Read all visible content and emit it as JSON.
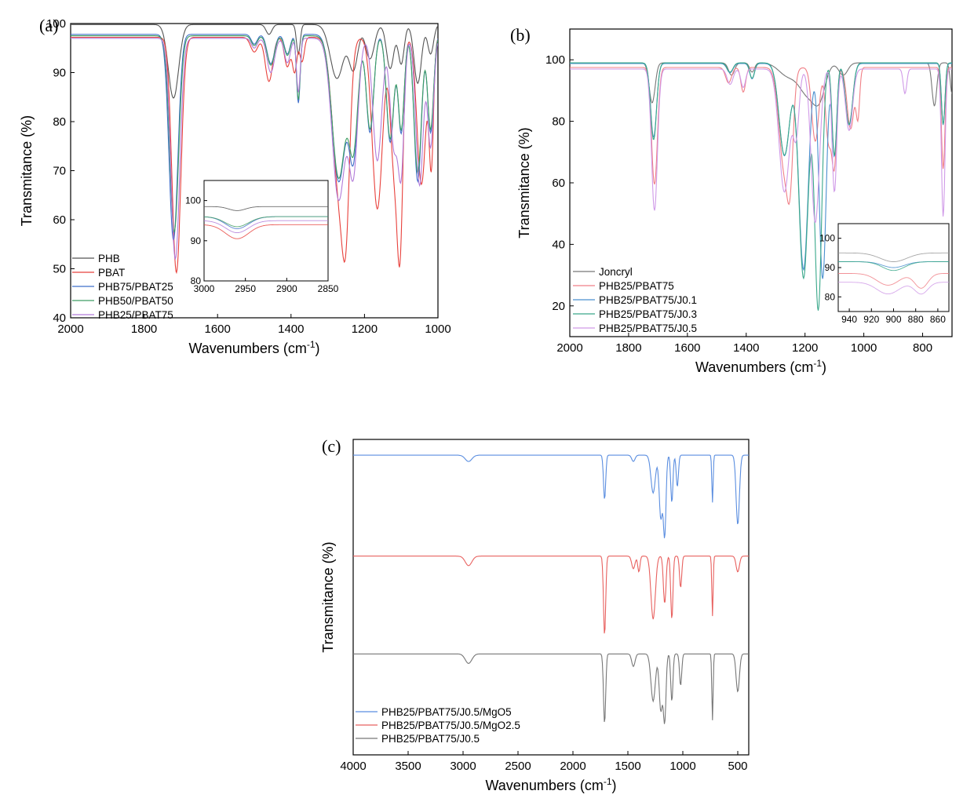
{
  "chart_data": [
    {
      "panel": "(a)",
      "type": "line",
      "xlabel": "Wavenumbers (cm",
      "xlabel_sup": "-1",
      "xlabel_end": ")",
      "ylabel": "Transmitance (%)",
      "xlim": [
        2000,
        1000
      ],
      "ylim": [
        40,
        100
      ],
      "xticks": [
        2000,
        1800,
        1600,
        1400,
        1200,
        1000
      ],
      "yticks": [
        40,
        50,
        60,
        70,
        80,
        90,
        100
      ],
      "legend_position": "bottom-left",
      "series": [
        {
          "name": "PHB",
          "color": "#555555",
          "baseline": 99.8,
          "dips": [
            [
              1720,
              15,
              14
            ],
            [
              1460,
              2,
              8
            ],
            [
              1380,
              6,
              5
            ],
            [
              1275,
              11,
              18
            ],
            [
              1230,
              9,
              12
            ],
            [
              1185,
              7,
              12
            ],
            [
              1130,
              9,
              10
            ],
            [
              1100,
              8,
              8
            ],
            [
              1055,
              12,
              10
            ],
            [
              1020,
              6,
              8
            ]
          ]
        },
        {
          "name": "PBAT",
          "color": "#e8413c",
          "baseline": 97.2,
          "dips": [
            [
              1712,
              48,
              12
            ],
            [
              1500,
              3,
              10
            ],
            [
              1460,
              9,
              10
            ],
            [
              1410,
              6,
              8
            ],
            [
              1390,
              7,
              6
            ],
            [
              1370,
              5,
              6
            ],
            [
              1268,
              32,
              18
            ],
            [
              1250,
              24,
              10
            ],
            [
              1165,
              35,
              14
            ],
            [
              1120,
              25,
              10
            ],
            [
              1103,
              40,
              8
            ],
            [
              1045,
              30,
              12
            ],
            [
              1018,
              25,
              6
            ]
          ]
        },
        {
          "name": "PHB75/PBAT25",
          "color": "#3f6fc9",
          "baseline": 97.8,
          "dips": [
            [
              1720,
              42,
              12
            ],
            [
              1500,
              2,
              8
            ],
            [
              1455,
              6,
              10
            ],
            [
              1410,
              4,
              8
            ],
            [
              1380,
              14,
              5
            ],
            [
              1270,
              30,
              18
            ],
            [
              1230,
              24,
              12
            ],
            [
              1185,
              20,
              10
            ],
            [
              1130,
              22,
              10
            ],
            [
              1100,
              20,
              8
            ],
            [
              1055,
              30,
              10
            ],
            [
              1020,
              20,
              8
            ]
          ]
        },
        {
          "name": "PHB50/PBAT50",
          "color": "#3e9e63",
          "baseline": 97.5,
          "dips": [
            [
              1718,
              40,
              12
            ],
            [
              1500,
              2,
              8
            ],
            [
              1455,
              6,
              10
            ],
            [
              1410,
              4,
              8
            ],
            [
              1380,
              13,
              5
            ],
            [
              1270,
              29,
              18
            ],
            [
              1230,
              22,
              12
            ],
            [
              1185,
              19,
              10
            ],
            [
              1130,
              21,
              10
            ],
            [
              1100,
              19,
              8
            ],
            [
              1055,
              28,
              10
            ],
            [
              1020,
              19,
              8
            ]
          ]
        },
        {
          "name": "PHB25/PBAT75",
          "color": "#b27bd9",
          "baseline": 97.0,
          "dips": [
            [
              1715,
              45,
              12
            ],
            [
              1500,
              2,
              8
            ],
            [
              1455,
              7,
              10
            ],
            [
              1410,
              5,
              8
            ],
            [
              1380,
              11,
              5
            ],
            [
              1270,
              33,
              18
            ],
            [
              1230,
              26,
              12
            ],
            [
              1165,
              25,
              12
            ],
            [
              1120,
              22,
              10
            ],
            [
              1100,
              26,
              8
            ],
            [
              1050,
              30,
              10
            ],
            [
              1020,
              22,
              8
            ]
          ]
        }
      ],
      "inset": {
        "xlim": [
          3000,
          2850
        ],
        "ylim": [
          80,
          105
        ],
        "xticks": [
          3000,
          2950,
          2900,
          2850
        ],
        "yticks": [
          80,
          90,
          100
        ],
        "series": [
          {
            "color": "#555555",
            "baseline": 98.5,
            "dips": [
              [
                2960,
                1,
                10
              ]
            ]
          },
          {
            "color": "#3f6fc9",
            "baseline": 96,
            "dips": [
              [
                2960,
                3,
                14
              ]
            ]
          },
          {
            "color": "#3e9e63",
            "baseline": 96,
            "dips": [
              [
                2960,
                2.5,
                14
              ]
            ]
          },
          {
            "color": "#e8413c",
            "baseline": 94,
            "dips": [
              [
                2960,
                3.5,
                14
              ]
            ]
          },
          {
            "color": "#b27bd9",
            "baseline": 95,
            "dips": [
              [
                2960,
                3,
                14
              ]
            ]
          }
        ]
      }
    },
    {
      "panel": "(b)",
      "type": "line",
      "xlabel": "Wavenumbers (cm",
      "xlabel_sup": "-1",
      "xlabel_end": ")",
      "ylabel": "Transmitance (%)",
      "xlim": [
        2000,
        700
      ],
      "ylim": [
        10,
        110
      ],
      "xticks": [
        2000,
        1800,
        1600,
        1400,
        1200,
        1000,
        800
      ],
      "yticks": [
        20,
        40,
        60,
        80,
        100
      ],
      "legend_position": "bottom-left",
      "series": [
        {
          "name": "Joncryl",
          "color": "#777777",
          "baseline": 99.0,
          "dips": [
            [
              1720,
              13,
              10
            ],
            [
              1450,
              4,
              10
            ],
            [
              1380,
              3,
              8
            ],
            [
              1260,
              4,
              30
            ],
            [
              1190,
              10,
              30
            ],
            [
              1150,
              9,
              20
            ],
            [
              1070,
              4,
              15
            ],
            [
              760,
              14,
              8
            ],
            [
              700,
              10,
              6
            ]
          ]
        },
        {
          "name": "PHB25/PBAT75",
          "color": "#f07f86",
          "baseline": 97.5,
          "dips": [
            [
              1712,
              38,
              10
            ],
            [
              1460,
              5,
              10
            ],
            [
              1410,
              8,
              8
            ],
            [
              1270,
              33,
              18
            ],
            [
              1250,
              24,
              10
            ],
            [
              1165,
              24,
              12
            ],
            [
              1120,
              24,
              10
            ],
            [
              1100,
              30,
              8
            ],
            [
              1045,
              20,
              12
            ],
            [
              1020,
              15,
              6
            ],
            [
              730,
              33,
              6
            ]
          ]
        },
        {
          "name": "PHB25/PBAT75/J0.1",
          "color": "#4a8fcf",
          "baseline": 98.8,
          "dips": [
            [
              1715,
              24,
              10
            ],
            [
              1455,
              3,
              10
            ],
            [
              1380,
              5,
              8
            ],
            [
              1270,
              30,
              18
            ],
            [
              1205,
              67,
              16
            ],
            [
              1140,
              70,
              12
            ],
            [
              1100,
              30,
              8
            ],
            [
              1050,
              20,
              12
            ],
            [
              730,
              20,
              6
            ]
          ]
        },
        {
          "name": "PHB25/PBAT75/J0.3",
          "color": "#3aa88a",
          "baseline": 99.0,
          "dips": [
            [
              1715,
              25,
              10
            ],
            [
              1455,
              3,
              10
            ],
            [
              1380,
              5,
              8
            ],
            [
              1270,
              30,
              18
            ],
            [
              1205,
              70,
              16
            ],
            [
              1155,
              80,
              12
            ],
            [
              1100,
              30,
              8
            ],
            [
              1050,
              20,
              12
            ],
            [
              730,
              20,
              6
            ]
          ]
        },
        {
          "name": "PHB25/PBAT75/J0.5",
          "color": "#d09ae8",
          "baseline": 97.0,
          "dips": [
            [
              1712,
              46,
              10
            ],
            [
              1455,
              5,
              10
            ],
            [
              1410,
              6,
              8
            ],
            [
              1270,
              40,
              18
            ],
            [
              1230,
              20,
              10
            ],
            [
              1165,
              50,
              14
            ],
            [
              1100,
              40,
              8
            ],
            [
              1050,
              20,
              12
            ],
            [
              860,
              8,
              6
            ],
            [
              730,
              48,
              6
            ]
          ]
        }
      ],
      "inset": {
        "xlim": [
          950,
          850
        ],
        "ylim": [
          75,
          105
        ],
        "xticks": [
          940,
          920,
          900,
          880,
          860
        ],
        "yticks": [
          80,
          90,
          100
        ],
        "series": [
          {
            "color": "#999999",
            "baseline": 95,
            "dips": [
              [
                900,
                3,
                12
              ]
            ]
          },
          {
            "color": "#4a8fcf",
            "baseline": 92,
            "dips": [
              [
                900,
                2,
                10
              ]
            ]
          },
          {
            "color": "#3aa88a",
            "baseline": 92,
            "dips": [
              [
                900,
                3,
                10
              ]
            ]
          },
          {
            "color": "#f07f86",
            "baseline": 88,
            "dips": [
              [
                905,
                4,
                10
              ],
              [
                875,
                5,
                6
              ]
            ]
          },
          {
            "color": "#d09ae8",
            "baseline": 85,
            "dips": [
              [
                905,
                4,
                10
              ],
              [
                875,
                4,
                6
              ]
            ]
          }
        ]
      }
    },
    {
      "panel": "(c)",
      "type": "line",
      "xlabel": "Wavenumbers (cm",
      "xlabel_sup": "-1",
      "xlabel_end": ")",
      "ylabel": "Transmitance (%)",
      "xlim": [
        4000,
        400
      ],
      "ylim": [
        0,
        100
      ],
      "xticks": [
        4000,
        3500,
        3000,
        2500,
        2000,
        1500,
        1000,
        500
      ],
      "legend_position": "bottom-left",
      "series": [
        {
          "name": "PHB25/PBAT75/J0.5/MgO5",
          "color": "#5b8ee0",
          "baseline": 95,
          "dips": [
            [
              2950,
              2,
              30
            ],
            [
              1712,
              14,
              10
            ],
            [
              1450,
              2,
              15
            ],
            [
              1270,
              12,
              20
            ],
            [
              1200,
              20,
              15
            ],
            [
              1165,
              25,
              12
            ],
            [
              1100,
              15,
              10
            ],
            [
              1050,
              10,
              10
            ],
            [
              730,
              15,
              6
            ],
            [
              500,
              22,
              15
            ]
          ]
        },
        {
          "name": "PHB25/PBAT75/J0.5/MgO2.5",
          "color": "#e8615f",
          "baseline": 63,
          "dips": [
            [
              2950,
              3,
              30
            ],
            [
              1712,
              25,
              10
            ],
            [
              1450,
              4,
              15
            ],
            [
              1400,
              5,
              10
            ],
            [
              1270,
              20,
              20
            ],
            [
              1165,
              15,
              12
            ],
            [
              1100,
              20,
              10
            ],
            [
              1020,
              10,
              10
            ],
            [
              730,
              19,
              6
            ],
            [
              500,
              5,
              15
            ]
          ]
        },
        {
          "name": "PHB25/PBAT75/J0.5",
          "color": "#777777",
          "baseline": 32,
          "dips": [
            [
              2950,
              3,
              30
            ],
            [
              1712,
              22,
              10
            ],
            [
              1450,
              4,
              15
            ],
            [
              1270,
              15,
              20
            ],
            [
              1200,
              18,
              15
            ],
            [
              1165,
              21,
              12
            ],
            [
              1100,
              15,
              10
            ],
            [
              1020,
              10,
              10
            ],
            [
              730,
              21,
              6
            ],
            [
              500,
              12,
              15
            ]
          ]
        }
      ]
    }
  ]
}
